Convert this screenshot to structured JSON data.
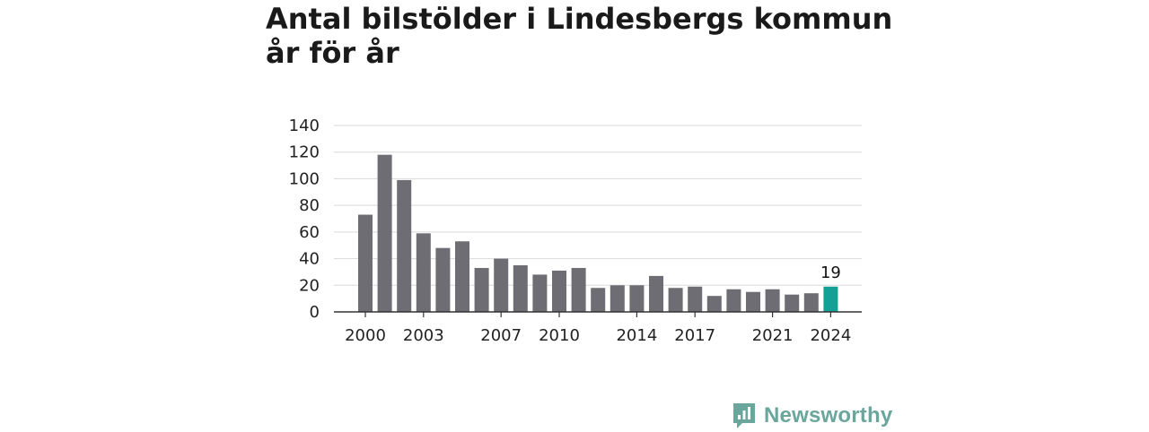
{
  "title_line1": "Antal bilstölder i Lindesbergs kommun",
  "title_line2": "år för år",
  "brand": {
    "name": "Newsworthy",
    "icon": "newsworthy-logo-icon"
  },
  "colors": {
    "bar": "#6e6d73",
    "highlight": "#14a195",
    "grid": "#d9d9d9",
    "axis": "#333333",
    "brand": "#6aa69b"
  },
  "chart_data": {
    "type": "bar",
    "x": [
      2000,
      2001,
      2002,
      2003,
      2004,
      2005,
      2006,
      2007,
      2008,
      2009,
      2010,
      2011,
      2012,
      2013,
      2014,
      2015,
      2016,
      2017,
      2018,
      2019,
      2020,
      2021,
      2022,
      2023,
      2024
    ],
    "values": [
      73,
      118,
      99,
      59,
      48,
      53,
      33,
      40,
      35,
      28,
      31,
      33,
      18,
      20,
      20,
      27,
      18,
      19,
      12,
      17,
      15,
      17,
      13,
      14,
      19
    ],
    "highlight_index": 24,
    "x_tick_labels": [
      "2000",
      "2003",
      "2007",
      "2010",
      "2014",
      "2017",
      "2021",
      "2024"
    ],
    "y_ticks": [
      0,
      20,
      40,
      60,
      80,
      100,
      120,
      140
    ],
    "ylim": [
      0,
      140
    ],
    "data_labels": [
      {
        "x": 2024,
        "text": "19"
      }
    ],
    "grid": true,
    "xlabel": "",
    "ylabel": ""
  }
}
